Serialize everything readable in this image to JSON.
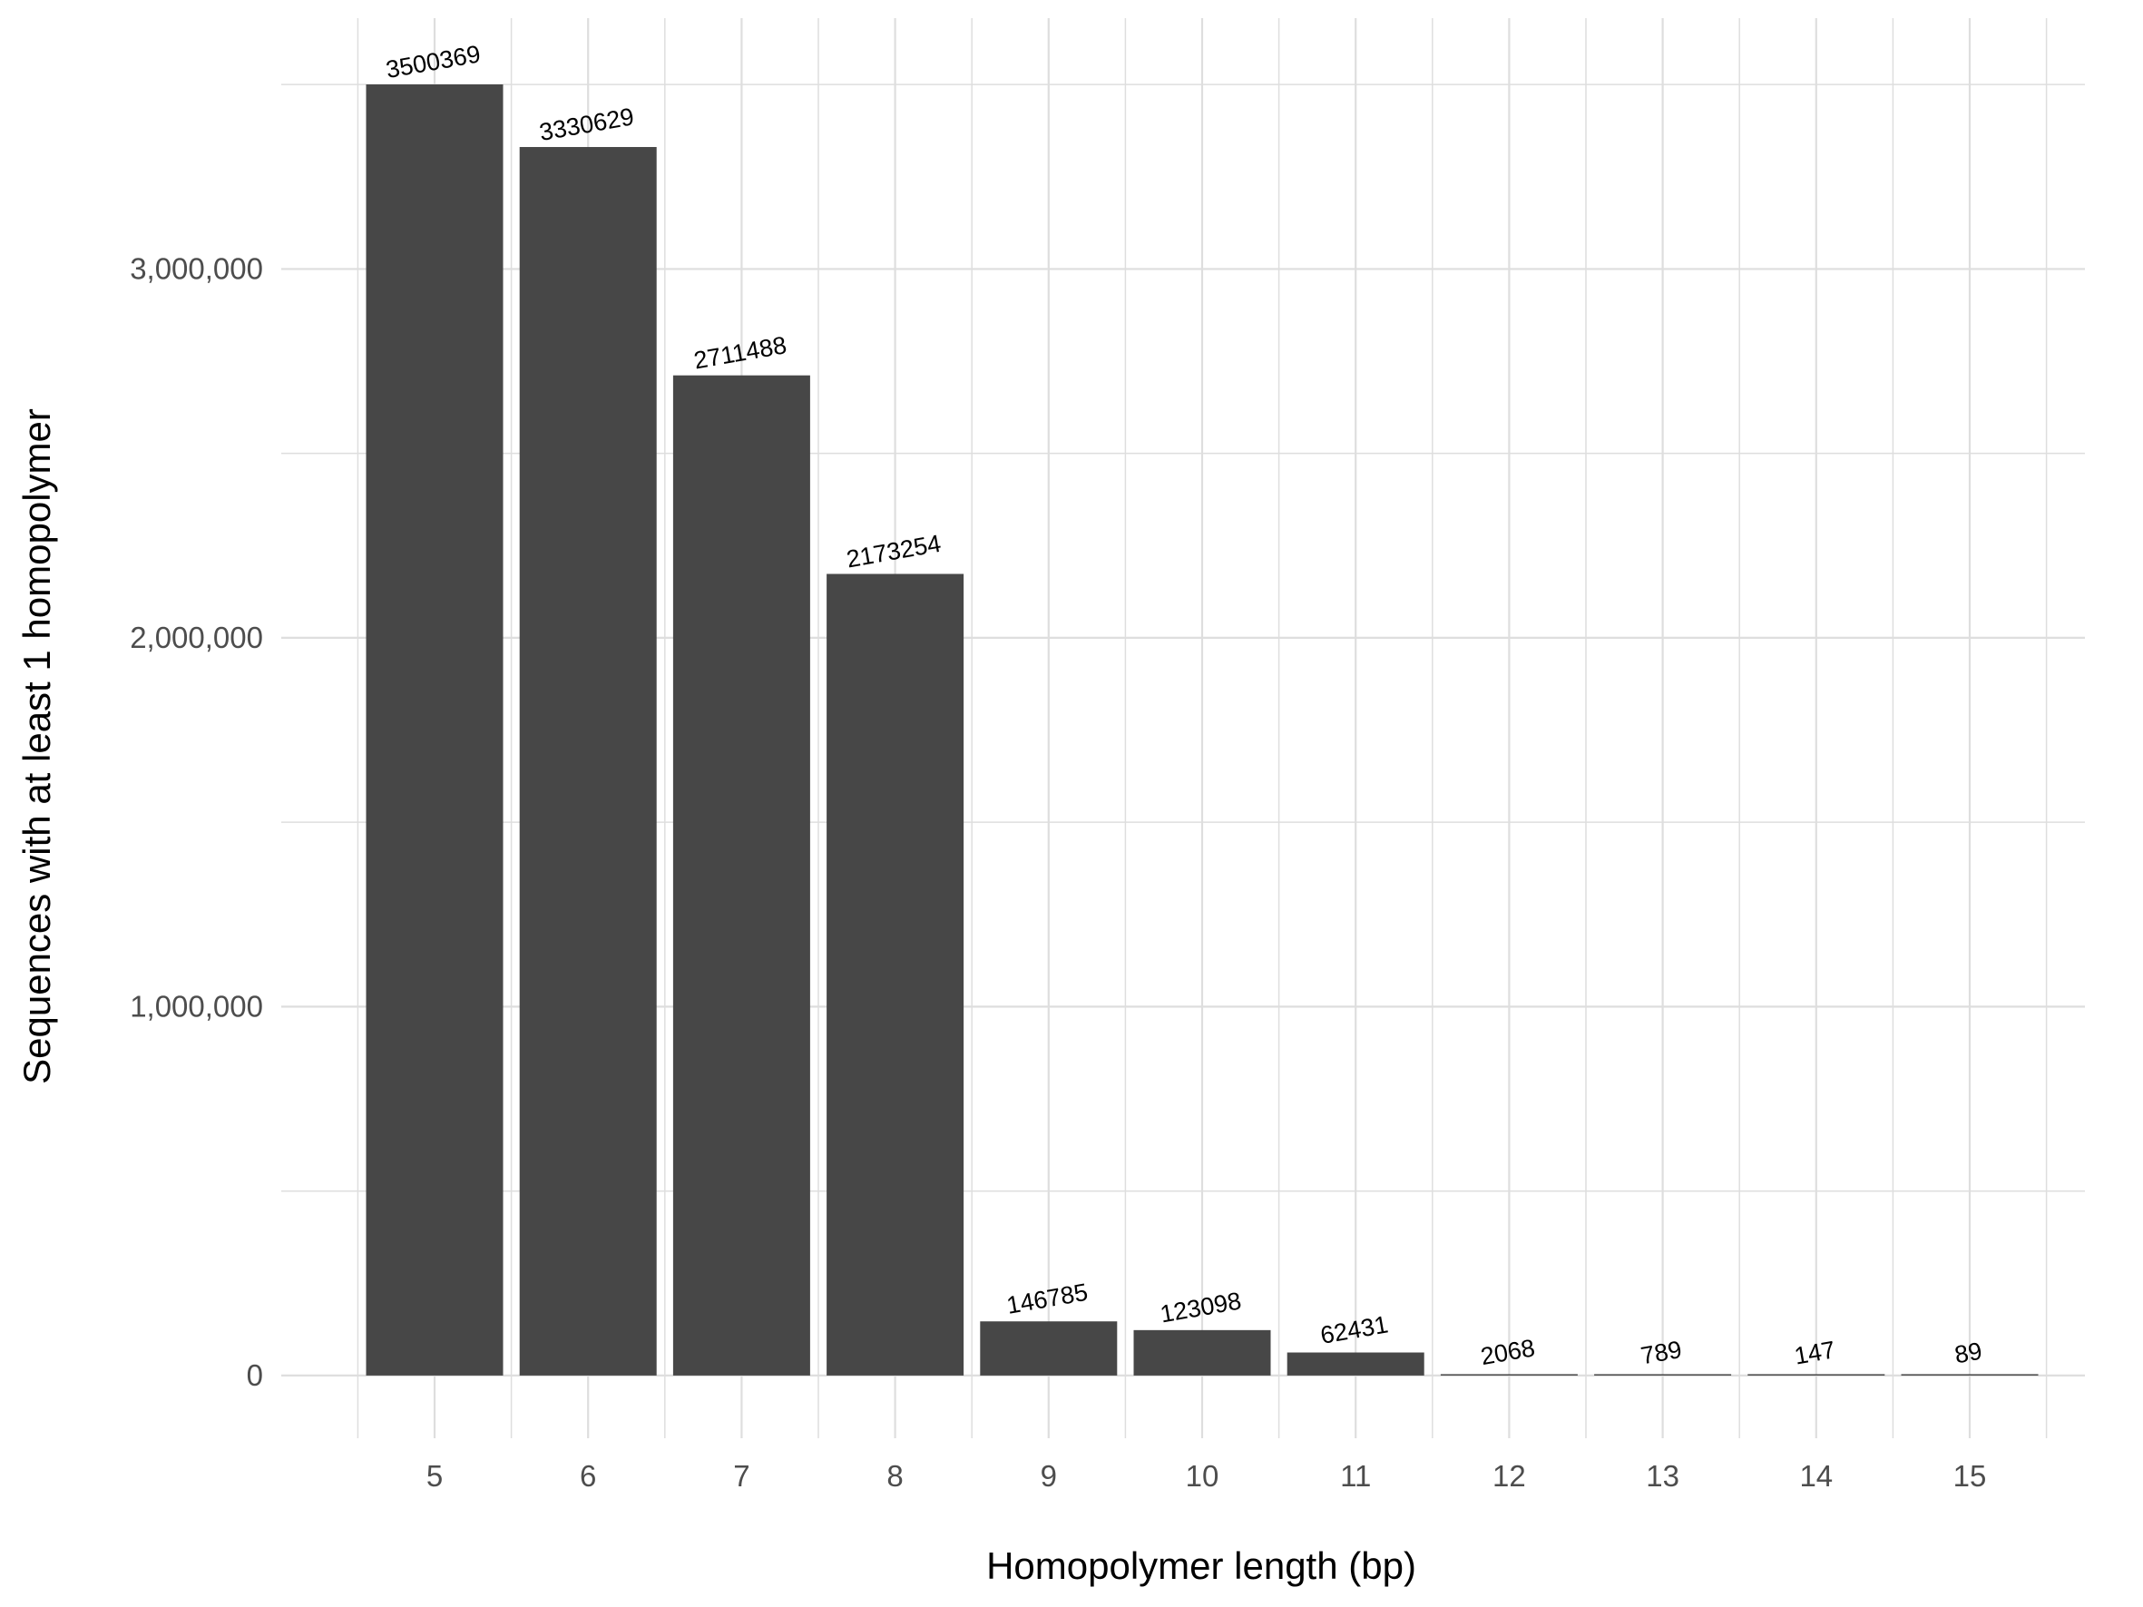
{
  "chart_data": {
    "type": "bar",
    "title": "",
    "xlabel": "Homopolymer length (bp)",
    "ylabel": "Sequences with at least 1 homopolymer",
    "categories": [
      "5",
      "6",
      "7",
      "8",
      "9",
      "10",
      "11",
      "12",
      "13",
      "14",
      "15"
    ],
    "values": [
      3500369,
      3330629,
      2711488,
      2173254,
      146785,
      123098,
      62431,
      2068,
      789,
      147,
      89
    ],
    "data_labels": [
      "3500369",
      "3330629",
      "2711488",
      "2173254",
      "146785",
      "123098",
      "62431",
      "2068",
      "789",
      "147",
      "89"
    ],
    "ylim": [
      -170000,
      3680000
    ],
    "y_ticks": [
      0,
      1000000,
      2000000,
      3000000
    ],
    "y_tick_labels": [
      "0",
      "1,000,000",
      "2,000,000",
      "3,000,000"
    ],
    "y_minor_ticks": [
      500000,
      1500000,
      2500000,
      3500000
    ],
    "grid": true,
    "legend": "none",
    "colors": {
      "bar": "#474747",
      "grid": "#dedede",
      "tick_text": "#4d4d4d"
    }
  }
}
